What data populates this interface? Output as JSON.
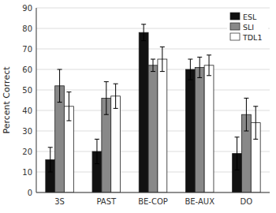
{
  "chart_data": {
    "type": "bar",
    "categories": [
      "3S",
      "PAST",
      "BE-COP",
      "BE-AUX",
      "DO"
    ],
    "series": [
      {
        "name": "ESL",
        "color": "#111111",
        "values": [
          16,
          20,
          78,
          60,
          19
        ],
        "errors": [
          6,
          6,
          4,
          5,
          8
        ]
      },
      {
        "name": "SLI",
        "color": "#888888",
        "values": [
          52,
          46,
          62,
          61,
          38
        ],
        "errors": [
          8,
          8,
          3,
          5,
          8
        ]
      },
      {
        "name": "TDL1",
        "color": "#ffffff",
        "values": [
          42,
          47,
          65,
          62,
          34
        ],
        "errors": [
          7,
          6,
          6,
          5,
          8
        ]
      }
    ],
    "ylabel": "Percent Correct",
    "ylim": [
      0,
      90
    ],
    "yticks": [
      0,
      10,
      20,
      30,
      40,
      50,
      60,
      70,
      80,
      90
    ],
    "grid": true,
    "legend": "upper right"
  }
}
